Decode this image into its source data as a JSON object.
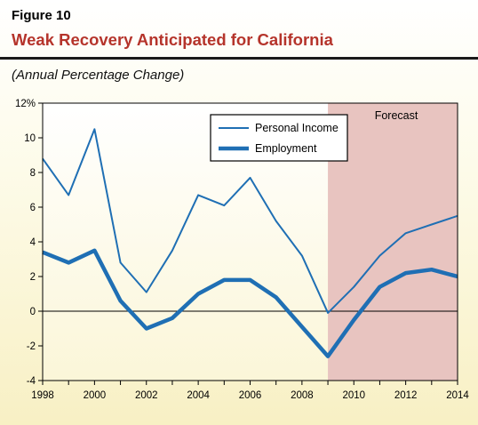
{
  "figure": {
    "label": "Figure 10",
    "title": "Weak Recovery Anticipated for California",
    "subtitle": "(Annual Percentage Change)"
  },
  "chart_data": {
    "type": "line",
    "x": [
      1998,
      1999,
      2000,
      2001,
      2002,
      2003,
      2004,
      2005,
      2006,
      2007,
      2008,
      2009,
      2010,
      2011,
      2012,
      2013,
      2014
    ],
    "series": [
      {
        "name": "Personal Income",
        "color": "#1f6fb4",
        "line_style": "thin",
        "values": [
          8.8,
          6.7,
          10.5,
          2.8,
          1.1,
          3.5,
          6.7,
          6.1,
          7.7,
          5.2,
          3.2,
          -0.1,
          1.4,
          3.2,
          4.5,
          5.0,
          5.5
        ]
      },
      {
        "name": "Employment",
        "color": "#1f6fb4",
        "line_style": "thick",
        "values": [
          3.4,
          2.8,
          3.5,
          0.6,
          -1.0,
          -0.4,
          1.0,
          1.8,
          1.8,
          0.8,
          -0.9,
          -2.6,
          -0.5,
          1.4,
          2.2,
          2.4,
          2.0
        ]
      }
    ],
    "x_ticks": [
      "1998",
      "2000",
      "2002",
      "2004",
      "2006",
      "2008",
      "2010",
      "2012",
      "2014"
    ],
    "y_ticks": [
      "12%",
      "10",
      "8",
      "6",
      "4",
      "2",
      "0",
      "-2",
      "-4"
    ],
    "ylim": [
      -4,
      12
    ],
    "xlim": [
      1998,
      2014
    ],
    "forecast": {
      "label": "Forecast",
      "start": 2009,
      "end": 2014,
      "color": "#e8c4c0"
    },
    "zero_line": true,
    "grid": false,
    "legend_position": "top-center"
  }
}
